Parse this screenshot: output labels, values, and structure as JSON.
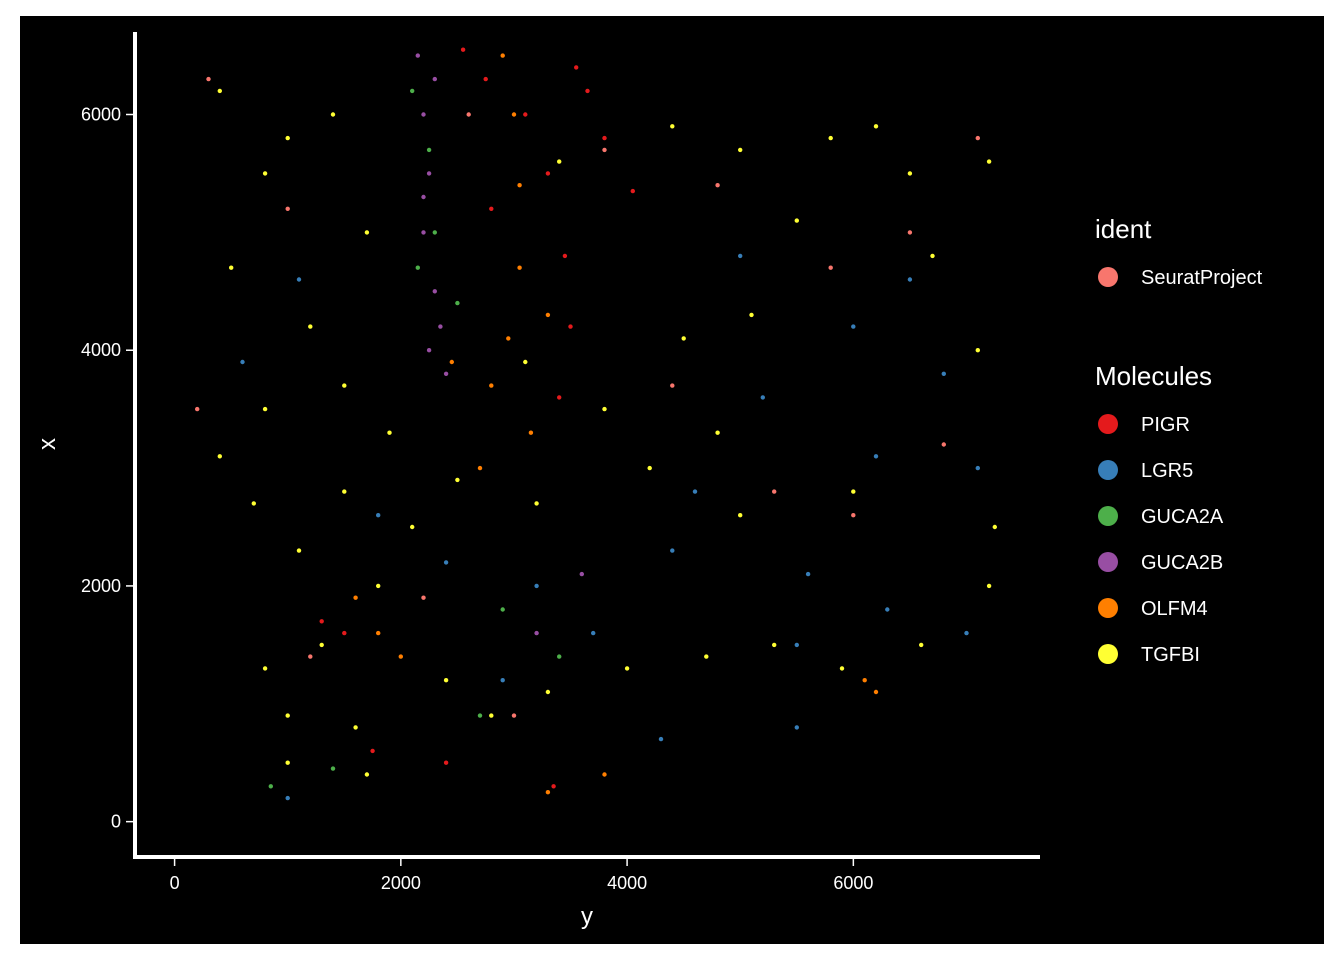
{
  "chart_data": {
    "type": "scatter",
    "xlabel": "y",
    "ylabel": "x",
    "xlim": [
      -350,
      7650
    ],
    "ylim": [
      -300,
      6700
    ],
    "x_ticks": [
      0,
      2000,
      4000,
      6000
    ],
    "x_tick_labels": [
      "0",
      "2000",
      "4000",
      "6000"
    ],
    "y_ticks": [
      0,
      2000,
      4000,
      6000
    ],
    "y_tick_labels": [
      "0",
      "2000",
      "4000",
      "6000"
    ],
    "background": "#000000",
    "grid": false,
    "legend_position": "right",
    "legends": [
      {
        "title": "ident",
        "entries": [
          {
            "label": "SeuratProject",
            "color": "#F8766D"
          }
        ]
      },
      {
        "title": "Molecules",
        "entries": [
          {
            "label": "PIGR",
            "color": "#E41A1C"
          },
          {
            "label": "LGR5",
            "color": "#377EB8"
          },
          {
            "label": "GUCA2A",
            "color": "#4DAF4A"
          },
          {
            "label": "GUCA2B",
            "color": "#984EA3"
          },
          {
            "label": "OLFM4",
            "color": "#FF7F00"
          },
          {
            "label": "TGFBI",
            "color": "#FFFF33"
          }
        ]
      }
    ],
    "series": [
      {
        "name": "SeuratProject",
        "color": "#F8766D",
        "points": [
          [
            300,
            6300
          ],
          [
            1000,
            5200
          ],
          [
            2600,
            6000
          ],
          [
            4800,
            5400
          ],
          [
            6500,
            5000
          ],
          [
            7100,
            5800
          ],
          [
            5300,
            2800
          ],
          [
            6000,
            2600
          ],
          [
            1200,
            1400
          ],
          [
            3000,
            900
          ],
          [
            4400,
            3700
          ],
          [
            6800,
            3200
          ],
          [
            200,
            3500
          ],
          [
            3800,
            5700
          ],
          [
            5800,
            4700
          ],
          [
            2200,
            1900
          ]
        ]
      },
      {
        "name": "PIGR",
        "color": "#E41A1C",
        "points": [
          [
            2550,
            6550
          ],
          [
            2750,
            6300
          ],
          [
            3100,
            6000
          ],
          [
            3300,
            5500
          ],
          [
            3450,
            4800
          ],
          [
            3500,
            4200
          ],
          [
            3400,
            3600
          ],
          [
            3650,
            6200
          ],
          [
            3800,
            5800
          ],
          [
            4050,
            5350
          ],
          [
            1300,
            1700
          ],
          [
            1500,
            1600
          ],
          [
            2400,
            500
          ],
          [
            3350,
            300
          ],
          [
            1750,
            600
          ],
          [
            2800,
            5200
          ],
          [
            3550,
            6400
          ]
        ]
      },
      {
        "name": "LGR5",
        "color": "#377EB8",
        "points": [
          [
            1800,
            2600
          ],
          [
            2400,
            2200
          ],
          [
            3200,
            2000
          ],
          [
            4600,
            2800
          ],
          [
            5200,
            3600
          ],
          [
            6000,
            4200
          ],
          [
            6800,
            3800
          ],
          [
            7100,
            3000
          ],
          [
            5600,
            2100
          ],
          [
            6300,
            1800
          ],
          [
            7000,
            1600
          ],
          [
            4400,
            2300
          ],
          [
            3700,
            1600
          ],
          [
            2900,
            1200
          ],
          [
            1100,
            4600
          ],
          [
            600,
            3900
          ],
          [
            5000,
            4800
          ],
          [
            6500,
            4600
          ],
          [
            6200,
            3100
          ],
          [
            5500,
            1500
          ],
          [
            1000,
            200
          ],
          [
            4300,
            700
          ],
          [
            5500,
            800
          ]
        ]
      },
      {
        "name": "GUCA2A",
        "color": "#4DAF4A",
        "points": [
          [
            2100,
            6200
          ],
          [
            2250,
            5700
          ],
          [
            2300,
            5000
          ],
          [
            2500,
            4400
          ],
          [
            2150,
            4700
          ],
          [
            2900,
            1800
          ],
          [
            3400,
            1400
          ],
          [
            850,
            300
          ],
          [
            1400,
            450
          ],
          [
            2700,
            900
          ]
        ]
      },
      {
        "name": "GUCA2B",
        "color": "#984EA3",
        "points": [
          [
            2150,
            6500
          ],
          [
            2200,
            6000
          ],
          [
            2250,
            5500
          ],
          [
            2200,
            5000
          ],
          [
            2300,
            4500
          ],
          [
            2250,
            4000
          ],
          [
            2350,
            4200
          ],
          [
            2300,
            6300
          ],
          [
            2200,
            5300
          ],
          [
            2400,
            3800
          ],
          [
            3200,
            1600
          ],
          [
            3600,
            2100
          ]
        ]
      },
      {
        "name": "OLFM4",
        "color": "#FF7F00",
        "points": [
          [
            2900,
            6500
          ],
          [
            3000,
            6000
          ],
          [
            3050,
            5400
          ],
          [
            3050,
            4700
          ],
          [
            2950,
            4100
          ],
          [
            2800,
            3700
          ],
          [
            3150,
            3300
          ],
          [
            2700,
            3000
          ],
          [
            2450,
            3900
          ],
          [
            3300,
            4300
          ],
          [
            1800,
            1600
          ],
          [
            2000,
            1400
          ],
          [
            1600,
            1900
          ],
          [
            6100,
            1200
          ],
          [
            6200,
            1100
          ],
          [
            3800,
            400
          ],
          [
            3300,
            250
          ]
        ]
      },
      {
        "name": "TGFBI",
        "color": "#FFFF33",
        "points": [
          [
            400,
            6200
          ],
          [
            800,
            5500
          ],
          [
            500,
            4700
          ],
          [
            1200,
            4200
          ],
          [
            800,
            3500
          ],
          [
            400,
            3100
          ],
          [
            1500,
            3700
          ],
          [
            1900,
            3300
          ],
          [
            1500,
            2800
          ],
          [
            1100,
            2300
          ],
          [
            1800,
            2000
          ],
          [
            1300,
            1500
          ],
          [
            800,
            1300
          ],
          [
            1000,
            900
          ],
          [
            1600,
            800
          ],
          [
            2400,
            1200
          ],
          [
            2800,
            900
          ],
          [
            3300,
            1100
          ],
          [
            4000,
            1300
          ],
          [
            4700,
            1400
          ],
          [
            5300,
            1500
          ],
          [
            5900,
            1300
          ],
          [
            6600,
            1500
          ],
          [
            7200,
            2000
          ],
          [
            7100,
            4000
          ],
          [
            7200,
            5600
          ],
          [
            6500,
            5500
          ],
          [
            5800,
            5800
          ],
          [
            5000,
            5700
          ],
          [
            4400,
            5900
          ],
          [
            5100,
            4300
          ],
          [
            4500,
            4100
          ],
          [
            3800,
            3500
          ],
          [
            4200,
            3000
          ],
          [
            5000,
            2600
          ],
          [
            6000,
            2800
          ],
          [
            3200,
            2700
          ],
          [
            2500,
            2900
          ],
          [
            2100,
            2500
          ],
          [
            1000,
            5800
          ],
          [
            1700,
            5000
          ],
          [
            1400,
            6000
          ],
          [
            700,
            2700
          ],
          [
            1700,
            400
          ],
          [
            1000,
            500
          ],
          [
            6700,
            4800
          ],
          [
            7250,
            2500
          ],
          [
            4800,
            3300
          ],
          [
            3400,
            5600
          ],
          [
            3100,
            3900
          ],
          [
            5500,
            5100
          ],
          [
            6200,
            5900
          ]
        ]
      }
    ]
  }
}
